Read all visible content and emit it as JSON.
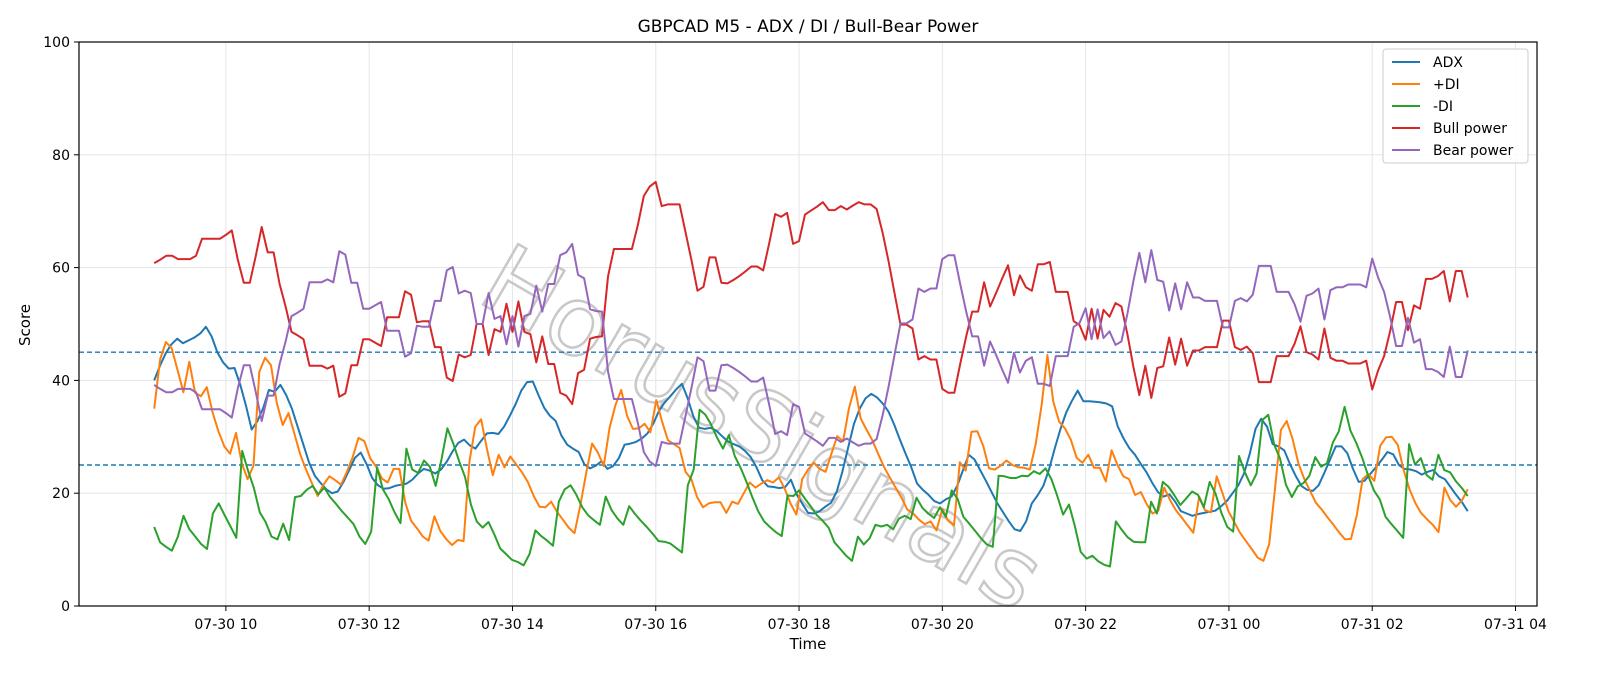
{
  "chart_data": {
    "type": "line",
    "title": "GBPCAD M5 - ADX / DI / Bull-Bear Power",
    "xlabel": "Time",
    "ylabel": "Score",
    "ylim": [
      0,
      100
    ],
    "yticks": [
      0,
      20,
      40,
      60,
      80,
      100
    ],
    "xlim_hours": [
      7.95,
      28.3
    ],
    "xticks": [
      {
        "label": "07-30 10",
        "hour": 10
      },
      {
        "label": "07-30 12",
        "hour": 12
      },
      {
        "label": "07-30 14",
        "hour": 14
      },
      {
        "label": "07-30 16",
        "hour": 16
      },
      {
        "label": "07-30 18",
        "hour": 18
      },
      {
        "label": "07-30 20",
        "hour": 20
      },
      {
        "label": "07-30 22",
        "hour": 22
      },
      {
        "label": "07-31 00",
        "hour": 24
      },
      {
        "label": "07-31 02",
        "hour": 26
      },
      {
        "label": "07-31 04",
        "hour": 28
      }
    ],
    "x_start_hour": 9.0,
    "x_end_hour": 27.333,
    "reference_lines": [
      45,
      25
    ],
    "grid": true,
    "legend_position": "top-right",
    "watermark": "HorusSignals",
    "series": [
      {
        "name": "ADX",
        "color": "#1f77b4",
        "values": [
          40,
          42.6,
          44.8,
          46.4,
          47.4,
          46.6,
          47.1,
          47.6,
          48.3,
          49.5,
          47.8,
          45.0,
          43.2,
          42.1,
          42.2,
          39.2,
          35.5,
          31.3,
          32.8,
          35.1,
          38.3,
          38.0,
          39.2,
          37.4,
          35.0,
          31.8,
          28.6,
          25.4,
          23.1,
          21.8,
          20.7,
          20.0,
          20.3,
          22.0,
          24.1,
          26.3,
          27.2,
          25.2,
          22.7,
          21.4,
          20.8,
          20.9,
          21.3,
          21.5,
          21.7,
          22.4,
          23.5,
          24.3,
          24.0,
          23.5,
          24.2,
          25.6,
          27.4,
          28.9,
          29.5,
          28.5,
          27.9,
          29.3,
          30.6,
          30.7,
          30.5,
          31.8,
          33.7,
          35.8,
          38.2,
          39.7,
          39.8,
          37.4,
          35.1,
          33.7,
          32.8,
          30.2,
          28.6,
          27.9,
          27.3,
          25.1,
          24.4,
          24.9,
          25.7,
          24.3,
          24.8,
          26.2,
          28.6,
          28.8,
          29.1,
          29.7,
          30.6,
          32.3,
          34.6,
          36.1,
          37.2,
          38.4,
          39.4,
          36.8,
          33.6,
          31.6,
          31.4,
          31.6,
          31.1,
          30.1,
          29.2,
          28.7,
          28.3,
          27.5,
          26.4,
          24.6,
          22.3,
          21.2,
          21.1,
          20.9,
          21.1,
          22.4,
          19.8,
          18.1,
          16.5,
          16.4,
          16.8,
          17.6,
          18.3,
          20.3,
          23.9,
          28.2,
          32.3,
          35.0,
          36.8,
          37.6,
          37.0,
          35.9,
          34.5,
          32.2,
          29.5,
          27.0,
          24.6,
          21.7,
          20.6,
          19.7,
          18.6,
          18.2,
          18.9,
          19.4,
          21.3,
          24.1,
          26.8,
          26.0,
          24.1,
          22.2,
          20.2,
          18.2,
          16.6,
          15.0,
          13.6,
          13.3,
          15.0,
          18.2,
          19.6,
          21.3,
          24.2,
          27.9,
          31.4,
          34.3,
          36.4,
          38.2,
          36.3,
          36.3,
          36.2,
          36.1,
          35.9,
          35.4,
          31.8,
          29.7,
          28.0,
          26.8,
          25.2,
          23.7,
          21.8,
          20.2,
          19.4,
          19.8,
          18.5,
          16.8,
          16.4,
          16.0,
          16.3,
          16.5,
          16.7,
          16.9,
          17.7,
          18.6,
          20.0,
          21.4,
          23.5,
          27.0,
          31.4,
          33.2,
          31.8,
          28.7,
          28.3,
          27.6,
          25.2,
          23.1,
          21.3,
          20.6,
          20.4,
          21.4,
          23.6,
          26.0,
          28.3,
          28.3,
          27.1,
          24.3,
          22.0,
          22.2,
          23.4,
          24.6,
          25.9,
          27.3,
          26.9,
          25.0,
          24.3,
          24.2,
          23.9,
          23.3,
          23.8,
          24.1,
          23.0,
          22.5,
          21.1,
          19.7,
          18.4,
          16.8
        ]
      },
      {
        "name": "+DI",
        "color": "#ff7f0e",
        "values": [
          35,
          43.7,
          46.8,
          45.7,
          41.8,
          37.9,
          43.3,
          37.8,
          37.2,
          38.8,
          34.3,
          31.0,
          28.3,
          27.0,
          30.7,
          25.3,
          22.5,
          24.9,
          41.5,
          44.0,
          42.7,
          36.0,
          32.1,
          34.2,
          30.6,
          26.9,
          24.2,
          21.8,
          19.5,
          21.5,
          23.0,
          22.3,
          21.5,
          23.8,
          26.4,
          29.8,
          29.2,
          26.2,
          24.7,
          22.6,
          21.9,
          24.3,
          24.3,
          18.3,
          15.1,
          13.8,
          12.3,
          11.6,
          15.9,
          13.3,
          11.9,
          10.8,
          11.7,
          11.5,
          25.7,
          31.8,
          33.1,
          27.8,
          23.2,
          26.8,
          24.6,
          26.5,
          25.1,
          23.7,
          22.0,
          19.5,
          17.6,
          17.5,
          18.5,
          16.7,
          15.3,
          13.9,
          12.9,
          17.9,
          23.6,
          28.8,
          27.2,
          24.8,
          31.6,
          35.6,
          38.3,
          33.7,
          31.4,
          31.5,
          32.3,
          30.8,
          36.5,
          32.7,
          29.4,
          28.7,
          28.0,
          23.8,
          22.5,
          19.3,
          17.5,
          18.2,
          18.4,
          18.4,
          16.5,
          18.5,
          18.1,
          20.0,
          21.9,
          21.0,
          21.7,
          22.3,
          21.9,
          22.8,
          20.8,
          18.2,
          16.2,
          22.5,
          24.2,
          25.4,
          24.3,
          23.8,
          27.0,
          30.1,
          29.2,
          35.0,
          38.9,
          33.3,
          31.3,
          29.4,
          27.0,
          24.7,
          22.8,
          21.0,
          19.2,
          17.1,
          16.4,
          15.3,
          14.5,
          15.0,
          13.4,
          17.2,
          15.1,
          14.3,
          25.5,
          24.0,
          30.9,
          31.0,
          28.4,
          24.4,
          24.2,
          24.9,
          25.8,
          25.0,
          24.6,
          24.5,
          24.2,
          28.7,
          35.6,
          44.5,
          36.3,
          32.7,
          31.5,
          29.5,
          26.3,
          25.4,
          26.8,
          24.5,
          24.5,
          22.1,
          27.6,
          25.0,
          23.0,
          22.5,
          19.7,
          20.2,
          18.1,
          16.4,
          16.9,
          21.0,
          18.8,
          17.0,
          15.7,
          14.3,
          13.0,
          19.4,
          17.0,
          16.6,
          23.0,
          20.0,
          16.8,
          14.9,
          13.0,
          11.5,
          10.1,
          8.6,
          8.0,
          11.0,
          21.0,
          31.2,
          32.8,
          29.6,
          25.3,
          22.5,
          20.4,
          18.3,
          17.1,
          15.7,
          14.4,
          13.0,
          11.8,
          11.9,
          16.1,
          22.5,
          23.4,
          22.2,
          28.4,
          29.9,
          30.0,
          28.6,
          24.2,
          20.8,
          18.3,
          16.5,
          15.4,
          14.4,
          13.1,
          21.0,
          18.8,
          17.6,
          18.7,
          20.7
        ]
      },
      {
        "name": "-DI",
        "color": "#2ca02c",
        "values": [
          14,
          11.3,
          10.5,
          9.8,
          12.2,
          16.0,
          13.6,
          12.3,
          11.0,
          10.1,
          16.4,
          18.2,
          16.1,
          14.1,
          12.1,
          27.5,
          24.0,
          20.9,
          16.6,
          14.9,
          12.3,
          11.8,
          14.6,
          11.7,
          19.3,
          19.5,
          20.6,
          21.3,
          19.8,
          21.0,
          19.3,
          18.1,
          16.8,
          15.7,
          14.5,
          12.3,
          11.0,
          13.2,
          24.6,
          20.7,
          18.9,
          16.6,
          14.7,
          27.9,
          24.2,
          23.6,
          25.8,
          24.7,
          21.3,
          26.1,
          31.5,
          28.8,
          25.7,
          22.9,
          18.0,
          15.0,
          13.9,
          14.9,
          12.7,
          10.2,
          9.2,
          8.2,
          7.8,
          7.2,
          9.2,
          13.4,
          12.4,
          11.6,
          10.7,
          18.5,
          20.7,
          21.4,
          19.7,
          17.5,
          16.1,
          15.2,
          14.4,
          19.4,
          17.0,
          15.5,
          14.4,
          17.7,
          16.3,
          15.1,
          14.0,
          12.8,
          11.5,
          11.4,
          11.1,
          10.3,
          9.5,
          21.4,
          24.2,
          34.8,
          33.9,
          32.1,
          29.8,
          27.9,
          30.3,
          26.6,
          24.5,
          22.0,
          19.3,
          16.8,
          15.0,
          14.0,
          13.1,
          12.4,
          19.6,
          19.5,
          20.5,
          19.0,
          17.6,
          16.1,
          15.1,
          13.9,
          11.3,
          10.1,
          8.9,
          8.0,
          12.3,
          10.9,
          12.0,
          14.4,
          14.1,
          14.4,
          13.6,
          15.5,
          16.0,
          15.4,
          19.2,
          17.4,
          16.4,
          15.6,
          17.5,
          15.8,
          20.5,
          19.0,
          15.8,
          14.6,
          13.3,
          12.0,
          10.9,
          10.5,
          23.1,
          23.0,
          22.7,
          22.7,
          23.1,
          23.0,
          23.9,
          23.4,
          24.4,
          22.5,
          19.5,
          16.2,
          18.0,
          14.2,
          9.6,
          8.4,
          8.9,
          7.9,
          7.3,
          7.0,
          15.0,
          13.5,
          12.2,
          11.4,
          11.3,
          11.3,
          18.5,
          16.4,
          22.0,
          21.1,
          19.6,
          17.9,
          19.1,
          20.3,
          19.7,
          17.5,
          22.0,
          19.9,
          16.5,
          14.0,
          13.2,
          26.6,
          23.7,
          21.4,
          23.5,
          33.0,
          33.9,
          28.6,
          26.1,
          21.5,
          19.3,
          21.2,
          21.8,
          23.1,
          26.4,
          24.7,
          25.3,
          29.0,
          30.9,
          35.3,
          31.1,
          28.9,
          26.3,
          23.2,
          20.5,
          18.9,
          15.8,
          14.5,
          13.3,
          12.1,
          28.7,
          25.1,
          26.2,
          23.2,
          22.4,
          26.8,
          24.1,
          23.7,
          22.1,
          20.9,
          19.5
        ]
      },
      {
        "name": "Bull power",
        "color": "#d62728",
        "values": [
          60.8,
          61.4,
          62.1,
          62.1,
          61.5,
          61.5,
          61.5,
          62.1,
          65.1,
          65.1,
          65.1,
          65.1,
          65.8,
          66.6,
          61.4,
          57.3,
          57.3,
          62.0,
          67.2,
          62.7,
          62.7,
          57.1,
          53.1,
          48.6,
          48.0,
          47.3,
          42.6,
          42.6,
          42.6,
          42.1,
          42.6,
          37.1,
          37.7,
          42.7,
          42.7,
          47.3,
          47.3,
          46.7,
          46.1,
          51.2,
          51.2,
          51.2,
          55.8,
          55.2,
          50.3,
          50.5,
          50.5,
          45.9,
          45.9,
          40.5,
          39.9,
          44.6,
          44.1,
          44.5,
          50.0,
          50.0,
          44.5,
          49.1,
          48.6,
          53.6,
          48.6,
          54.0,
          48.6,
          48.2,
          43.2,
          47.8,
          42.9,
          42.9,
          37.8,
          37.3,
          35.8,
          41.3,
          41.9,
          47.4,
          47.7,
          47.8,
          58.4,
          63.3,
          63.3,
          63.3,
          63.3,
          67.5,
          72.7,
          74.4,
          75.2,
          70.9,
          71.2,
          71.2,
          71.2,
          66.2,
          61.2,
          55.9,
          56.6,
          61.8,
          61.8,
          57.3,
          57.2,
          57.8,
          58.5,
          59.3,
          60.2,
          60.2,
          59.5,
          64.3,
          69.5,
          69.0,
          69.7,
          64.2,
          64.7,
          69.4,
          70.1,
          70.8,
          71.6,
          70.2,
          70.2,
          70.9,
          70.3,
          71.0,
          71.6,
          71.2,
          71.2,
          70.4,
          66.2,
          61.1,
          55.4,
          49.9,
          49.9,
          49.2,
          43.7,
          44.3,
          43.7,
          43.7,
          38.5,
          37.8,
          37.8,
          42.9,
          47.8,
          52.2,
          52.2,
          57.4,
          53.1,
          55.5,
          58.0,
          60.4,
          55.1,
          58.6,
          56.5,
          55.9,
          60.6,
          60.6,
          61.0,
          55.7,
          55.7,
          55.7,
          50.5,
          49.8,
          47.2,
          52.7,
          47.4,
          52.5,
          51.3,
          53.7,
          53.1,
          48.2,
          42.4,
          37.4,
          42.6,
          36.9,
          42.2,
          42.5,
          47.6,
          42.8,
          47.4,
          42.6,
          45.3,
          45.3,
          45.9,
          45.9,
          45.9,
          50.6,
          50.6,
          45.9,
          45.4,
          46.0,
          44.8,
          39.7,
          39.7,
          39.7,
          44.3,
          44.3,
          44.3,
          46.5,
          49.6,
          45.0,
          44.6,
          43.7,
          49.2,
          44.0,
          43.5,
          43.5,
          43.0,
          43.0,
          43.0,
          43.5,
          38.4,
          41.8,
          44.3,
          48.7,
          53.9,
          53.9,
          48.9,
          53.3,
          52.7,
          58.0,
          58.0,
          58.5,
          59.4,
          54.0,
          59.4,
          59.4,
          54.7
        ]
      },
      {
        "name": "Bear power",
        "color": "#9467bd",
        "values": [
          39.2,
          38.5,
          37.9,
          37.9,
          38.5,
          38.5,
          38.5,
          37.9,
          34.9,
          34.9,
          34.9,
          34.9,
          34.2,
          33.4,
          38.6,
          42.7,
          42.7,
          38.0,
          32.8,
          37.3,
          37.3,
          42.9,
          46.9,
          51.4,
          52.0,
          52.7,
          57.4,
          57.4,
          57.4,
          57.9,
          57.4,
          62.9,
          62.3,
          57.3,
          57.3,
          52.7,
          52.7,
          53.3,
          53.9,
          48.8,
          48.8,
          48.8,
          44.2,
          44.8,
          49.7,
          49.5,
          49.5,
          54.1,
          54.1,
          59.5,
          60.1,
          55.4,
          55.9,
          55.5,
          50.0,
          50.0,
          55.5,
          50.9,
          51.4,
          46.4,
          51.4,
          46.0,
          51.4,
          51.8,
          56.8,
          52.2,
          57.1,
          57.1,
          62.2,
          62.7,
          64.2,
          58.7,
          58.1,
          52.6,
          52.3,
          52.2,
          41.6,
          36.7,
          36.7,
          36.7,
          36.7,
          32.5,
          27.3,
          25.6,
          24.8,
          29.1,
          28.8,
          28.8,
          28.8,
          33.8,
          38.8,
          44.1,
          43.4,
          38.2,
          38.2,
          42.7,
          42.8,
          42.2,
          41.5,
          40.7,
          39.8,
          39.8,
          40.5,
          35.7,
          30.5,
          31.0,
          30.3,
          35.8,
          35.3,
          30.6,
          29.9,
          29.2,
          28.4,
          29.8,
          29.8,
          29.1,
          29.7,
          29.0,
          28.4,
          28.8,
          28.8,
          29.6,
          33.8,
          38.9,
          44.6,
          50.1,
          50.1,
          50.8,
          56.3,
          55.7,
          56.3,
          56.3,
          61.5,
          62.2,
          62.2,
          57.1,
          52.2,
          47.8,
          47.8,
          42.6,
          46.9,
          44.5,
          42.0,
          39.6,
          44.9,
          41.4,
          43.5,
          44.1,
          39.4,
          39.4,
          39.0,
          44.3,
          44.3,
          44.3,
          49.5,
          50.2,
          52.8,
          47.3,
          52.6,
          47.5,
          48.7,
          46.3,
          46.9,
          51.8,
          57.6,
          62.6,
          57.4,
          63.1,
          57.8,
          57.5,
          52.4,
          57.2,
          52.6,
          57.4,
          54.7,
          54.7,
          54.1,
          54.1,
          54.1,
          49.4,
          49.4,
          54.1,
          54.6,
          54.0,
          55.2,
          60.3,
          60.3,
          60.3,
          55.7,
          55.7,
          55.7,
          53.5,
          50.4,
          55.0,
          55.4,
          56.3,
          50.8,
          56.0,
          56.5,
          56.5,
          57.0,
          57.0,
          57.0,
          56.5,
          61.6,
          58.2,
          55.7,
          51.3,
          46.1,
          46.1,
          51.1,
          46.7,
          47.3,
          42.0,
          42.0,
          41.5,
          40.6,
          46.0,
          40.6,
          40.6,
          45.3
        ]
      }
    ]
  }
}
